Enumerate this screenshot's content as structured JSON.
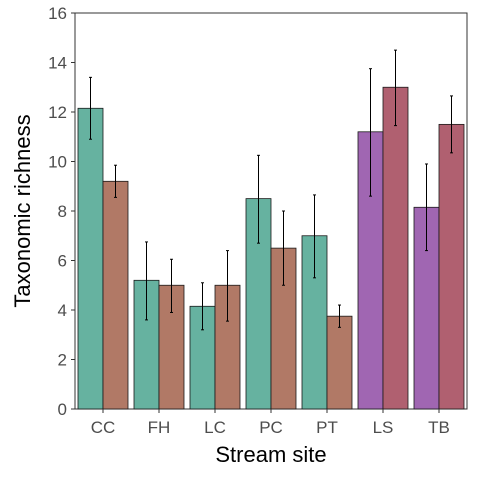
{
  "chart_data": {
    "type": "bar",
    "xlabel": "Stream site",
    "ylabel": "Taxonomic richness",
    "ylim": [
      0,
      16
    ],
    "yticks": [
      0,
      2,
      4,
      6,
      8,
      10,
      12,
      14,
      16
    ],
    "grid": false,
    "legend": "none",
    "categories": [
      "CC",
      "FH",
      "LC",
      "PC",
      "PT",
      "LS",
      "TB"
    ],
    "bars": [
      {
        "category": "CC",
        "group": 0,
        "value": 12.15,
        "err_low": 10.9,
        "err_high": 13.4,
        "color": "#66b2a0"
      },
      {
        "category": "CC",
        "group": 1,
        "value": 9.2,
        "err_low": 8.55,
        "err_high": 9.85,
        "color": "#b17966"
      },
      {
        "category": "FH",
        "group": 0,
        "value": 5.2,
        "err_low": 3.6,
        "err_high": 6.75,
        "color": "#66b2a0"
      },
      {
        "category": "FH",
        "group": 1,
        "value": 5.0,
        "err_low": 3.9,
        "err_high": 6.05,
        "color": "#b17966"
      },
      {
        "category": "LC",
        "group": 0,
        "value": 4.15,
        "err_low": 3.2,
        "err_high": 5.1,
        "color": "#66b2a0"
      },
      {
        "category": "LC",
        "group": 1,
        "value": 5.0,
        "err_low": 3.55,
        "err_high": 6.4,
        "color": "#b17966"
      },
      {
        "category": "PC",
        "group": 0,
        "value": 8.5,
        "err_low": 6.7,
        "err_high": 10.25,
        "color": "#66b2a0"
      },
      {
        "category": "PC",
        "group": 1,
        "value": 6.5,
        "err_low": 5.0,
        "err_high": 8.0,
        "color": "#b17966"
      },
      {
        "category": "PT",
        "group": 0,
        "value": 7.0,
        "err_low": 5.3,
        "err_high": 8.65,
        "color": "#66b2a0"
      },
      {
        "category": "PT",
        "group": 1,
        "value": 3.75,
        "err_low": 3.3,
        "err_high": 4.2,
        "color": "#b17966"
      },
      {
        "category": "LS",
        "group": 0,
        "value": 11.2,
        "err_low": 8.6,
        "err_high": 13.75,
        "color": "#a066b2"
      },
      {
        "category": "LS",
        "group": 1,
        "value": 13.0,
        "err_low": 11.45,
        "err_high": 14.5,
        "color": "#b06070"
      },
      {
        "category": "TB",
        "group": 0,
        "value": 8.15,
        "err_low": 6.4,
        "err_high": 9.9,
        "color": "#a066b2"
      },
      {
        "category": "TB",
        "group": 1,
        "value": 11.5,
        "err_low": 10.35,
        "err_high": 12.65,
        "color": "#b06070"
      }
    ]
  }
}
